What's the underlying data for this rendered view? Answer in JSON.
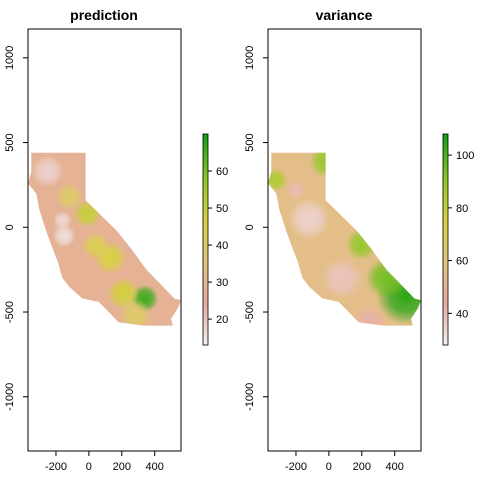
{
  "chart_data": [
    {
      "type": "heatmap",
      "title": "prediction",
      "xlabel": "",
      "ylabel": "",
      "x_ticks": [
        -200,
        0,
        200,
        400
      ],
      "y_ticks": [
        -1000,
        -500,
        0,
        500,
        1000
      ],
      "xlim": [
        -370,
        560
      ],
      "ylim": [
        -1320,
        1170
      ],
      "legend_ticks": [
        20,
        30,
        40,
        50,
        60
      ],
      "legend_range": [
        13,
        70
      ],
      "legend_placement": "right",
      "palette": [
        "#f2f2f2",
        "#e7a9a0",
        "#e2c77e",
        "#d8d23f",
        "#8bc628",
        "#129e12"
      ],
      "region": "California",
      "background_value": 28,
      "hotspots": [
        {
          "x": 340,
          "y": -420,
          "r": 60,
          "value": 66
        },
        {
          "x": 210,
          "y": -390,
          "r": 70,
          "value": 48
        },
        {
          "x": 130,
          "y": -180,
          "r": 70,
          "value": 47
        },
        {
          "x": -10,
          "y": 80,
          "r": 60,
          "value": 50
        },
        {
          "x": 40,
          "y": -110,
          "r": 60,
          "value": 44
        },
        {
          "x": -120,
          "y": 180,
          "r": 60,
          "value": 40
        },
        {
          "x": 280,
          "y": -520,
          "r": 70,
          "value": 40
        },
        {
          "x": -250,
          "y": 330,
          "r": 70,
          "value": 18
        },
        {
          "x": -150,
          "y": -50,
          "r": 50,
          "value": 16
        },
        {
          "x": -160,
          "y": 40,
          "r": 40,
          "value": 17
        }
      ]
    },
    {
      "type": "heatmap",
      "title": "variance",
      "xlabel": "",
      "ylabel": "",
      "x_ticks": [
        -200,
        0,
        200,
        400
      ],
      "y_ticks": [
        -1000,
        -500,
        0,
        500,
        1000
      ],
      "xlim": [
        -370,
        560
      ],
      "ylim": [
        -1320,
        1170
      ],
      "legend_ticks": [
        40,
        60,
        80,
        100
      ],
      "legend_range": [
        28,
        108
      ],
      "legend_placement": "right",
      "palette": [
        "#f2f2f2",
        "#e7a9a0",
        "#e2c77e",
        "#d8d23f",
        "#8bc628",
        "#129e12"
      ],
      "region": "California",
      "background_value": 55,
      "hotspots": [
        {
          "x": 470,
          "y": -400,
          "r": 130,
          "value": 105
        },
        {
          "x": 350,
          "y": -300,
          "r": 90,
          "value": 95
        },
        {
          "x": 200,
          "y": -100,
          "r": 70,
          "value": 90
        },
        {
          "x": -20,
          "y": 390,
          "r": 70,
          "value": 90
        },
        {
          "x": -320,
          "y": 280,
          "r": 50,
          "value": 85
        },
        {
          "x": -120,
          "y": 50,
          "r": 90,
          "value": 35
        },
        {
          "x": 80,
          "y": -300,
          "r": 90,
          "value": 38
        },
        {
          "x": 250,
          "y": -560,
          "r": 70,
          "value": 42
        },
        {
          "x": -200,
          "y": 220,
          "r": 40,
          "value": 40
        },
        {
          "x": 100,
          "y": 250,
          "r": 30,
          "value": 42
        }
      ]
    }
  ]
}
